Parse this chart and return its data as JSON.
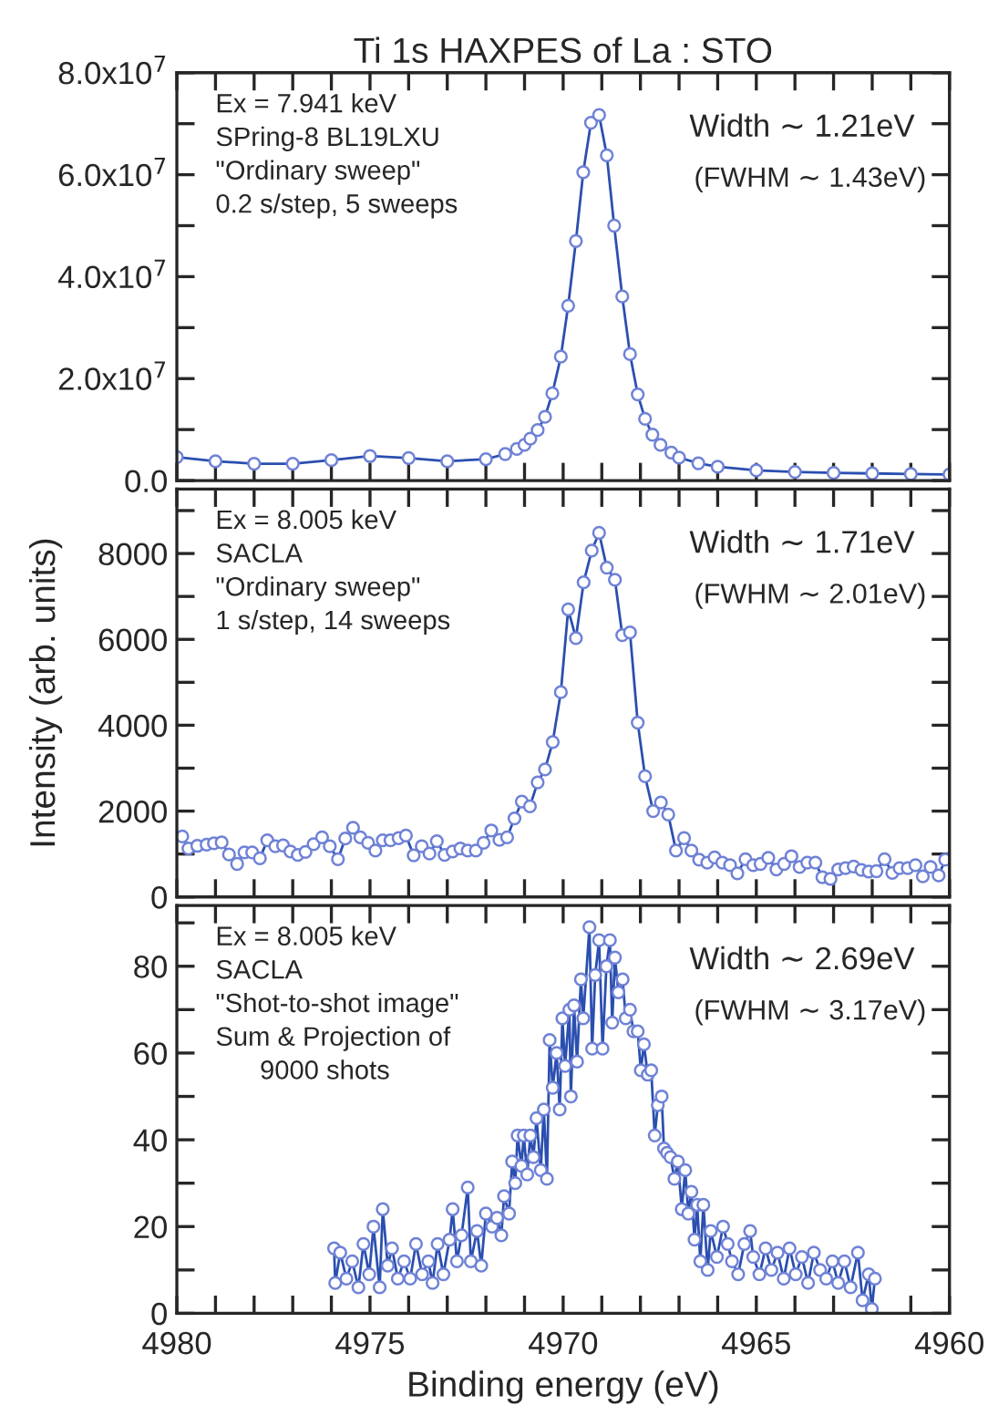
{
  "chart_data": [
    {
      "type": "line",
      "title": "Ti 1s HAXPES of La : STO",
      "marker": "circle",
      "line_style": "solid",
      "grid": false,
      "tick_labels": "y",
      "annotations": [
        "Ex = 7.941 keV\nSPring-8 BL19LXU\n\"Ordinary sweep\"\n0.2 s/step, 5 sweeps",
        "Width ∼ 1.21eV",
        "(FWHM ∼ 1.43eV)"
      ],
      "xlim": [
        4980,
        4960
      ],
      "xticks": [
        {
          "value": 4980,
          "label": null
        },
        {
          "value": 4979,
          "label": null
        },
        {
          "value": 4978,
          "label": null
        },
        {
          "value": 4977,
          "label": null
        },
        {
          "value": 4976,
          "label": null
        },
        {
          "value": 4975,
          "label": null
        },
        {
          "value": 4974,
          "label": null
        },
        {
          "value": 4973,
          "label": null
        },
        {
          "value": 4972,
          "label": null
        },
        {
          "value": 4971,
          "label": null
        },
        {
          "value": 4970,
          "label": null
        },
        {
          "value": 4969,
          "label": null
        },
        {
          "value": 4968,
          "label": null
        },
        {
          "value": 4967,
          "label": null
        },
        {
          "value": 4966,
          "label": null
        },
        {
          "value": 4965,
          "label": null
        },
        {
          "value": 4964,
          "label": null
        },
        {
          "value": 4963,
          "label": null
        },
        {
          "value": 4962,
          "label": null
        },
        {
          "value": 4961,
          "label": null
        },
        {
          "value": 4960,
          "label": null
        }
      ],
      "ylim": [
        0,
        80000000
      ],
      "yticks": [
        {
          "value": 0,
          "label": "0.0"
        },
        {
          "value": 10000000,
          "label": null
        },
        {
          "value": 20000000,
          "label": "2.0x10$^{7}$"
        },
        {
          "value": 30000000,
          "label": null
        },
        {
          "value": 40000000,
          "label": "4.0x10$^{7}$"
        },
        {
          "value": 50000000,
          "label": null
        },
        {
          "value": 60000000,
          "label": "6.0x10$^{7}$"
        },
        {
          "value": 70000000,
          "label": null
        },
        {
          "value": 80000000,
          "label": "8.0x10$^{7}$"
        }
      ],
      "series": [
        {
          "color": "#2b4fb0",
          "x": [
            4980,
            4979,
            4978,
            4977,
            4976,
            4975,
            4974,
            4973,
            4972,
            4971.5,
            4971.2,
            4971.0,
            4970.85,
            4970.66,
            4970.47,
            4970.28,
            4970.06,
            4969.87,
            4969.67,
            4969.48,
            4969.28,
            4969.07,
            4968.87,
            4968.68,
            4968.47,
            4968.27,
            4968.07,
            4967.88,
            4967.69,
            4967.48,
            4967.2,
            4967,
            4966.5,
            4966,
            4965,
            4964,
            4963,
            4962,
            4961,
            4960
          ],
          "values": [
            4600000,
            3800000,
            3300000,
            3300000,
            4000000,
            4800000,
            4400000,
            3800000,
            4200000,
            5200000,
            6200000,
            7000000,
            8200000,
            9900000,
            12500000,
            17100000,
            24300000,
            34300000,
            47000000,
            60500000,
            70200000,
            71700000,
            63800000,
            50000000,
            36100000,
            24800000,
            16900000,
            12100000,
            9000000,
            7000000,
            5500000,
            4500000,
            3400000,
            2700000,
            2000000,
            1700000,
            1500000,
            1400000,
            1300000,
            1200000
          ]
        }
      ]
    },
    {
      "type": "line",
      "ylabel": "Intensity (arb. units)",
      "marker": "circle",
      "line_style": "solid",
      "grid": false,
      "tick_labels": "y",
      "annotations": [
        "Ex = 8.005 keV\nSACLA\n\"Ordinary sweep\"\n1 s/step, 14 sweeps",
        "Width ∼ 1.71eV",
        "(FWHM ∼ 2.01eV)"
      ],
      "xlim": [
        4980,
        4960
      ],
      "xticks": [
        {
          "value": 4980,
          "label": null
        },
        {
          "value": 4979,
          "label": null
        },
        {
          "value": 4978,
          "label": null
        },
        {
          "value": 4977,
          "label": null
        },
        {
          "value": 4976,
          "label": null
        },
        {
          "value": 4975,
          "label": null
        },
        {
          "value": 4974,
          "label": null
        },
        {
          "value": 4973,
          "label": null
        },
        {
          "value": 4972,
          "label": null
        },
        {
          "value": 4971,
          "label": null
        },
        {
          "value": 4970,
          "label": null
        },
        {
          "value": 4969,
          "label": null
        },
        {
          "value": 4968,
          "label": null
        },
        {
          "value": 4967,
          "label": null
        },
        {
          "value": 4966,
          "label": null
        },
        {
          "value": 4965,
          "label": null
        },
        {
          "value": 4964,
          "label": null
        },
        {
          "value": 4963,
          "label": null
        },
        {
          "value": 4962,
          "label": null
        },
        {
          "value": 4961,
          "label": null
        },
        {
          "value": 4960,
          "label": null
        }
      ],
      "ylim": [
        0,
        9500
      ],
      "yticks": [
        0,
        {
          "value": 1000,
          "label": null
        },
        2000,
        {
          "value": 3000,
          "label": null
        },
        4000,
        {
          "value": 5000,
          "label": null
        },
        6000,
        {
          "value": 7000,
          "label": null
        },
        8000,
        {
          "value": 9000,
          "label": null
        }
      ],
      "series": [
        {
          "color": "#2b4fb0",
          "x": [
            4979.86,
            4979.7,
            4979.47,
            4979.23,
            4979.04,
            4978.84,
            4978.65,
            4978.44,
            4978.25,
            4978.05,
            4977.85,
            4977.66,
            4977.45,
            4977.25,
            4977.06,
            4976.87,
            4976.67,
            4976.46,
            4976.24,
            4976.04,
            4975.83,
            4975.64,
            4975.44,
            4975.25,
            4975.05,
            4974.86,
            4974.67,
            4974.47,
            4974.26,
            4974.07,
            4973.87,
            4973.66,
            4973.46,
            4973.27,
            4973.07,
            4972.86,
            4972.66,
            4972.47,
            4972.26,
            4972.06,
            4971.86,
            4971.65,
            4971.45,
            4971.26,
            4971.07,
            4970.86,
            4970.66,
            4970.47,
            4970.27,
            4970.06,
            4969.87,
            4969.67,
            4969.47,
            4969.26,
            4969.07,
            4968.87,
            4968.66,
            4968.47,
            4968.27,
            4968.07,
            4967.88,
            4967.67,
            4967.47,
            4967.28,
            4967.08,
            4966.87,
            4966.68,
            4966.48,
            4966.27,
            4966.08,
            4965.88,
            4965.68,
            4965.49,
            4965.28,
            4965.08,
            4964.89,
            4964.69,
            4964.48,
            4964.28,
            4964.09,
            4963.88,
            4963.68,
            4963.47,
            4963.29,
            4963.08,
            4962.88,
            4962.69,
            4962.48,
            4962.28,
            4962.09,
            4961.89,
            4961.68,
            4961.48,
            4961.29,
            4961.08,
            4960.88,
            4960.69,
            4960.49,
            4960.28,
            4960.11
          ],
          "values": [
            1410,
            1130,
            1190,
            1220,
            1250,
            1270,
            990,
            770,
            1040,
            1040,
            900,
            1320,
            1180,
            1200,
            1060,
            980,
            1050,
            1230,
            1390,
            1180,
            880,
            1360,
            1610,
            1390,
            1260,
            1080,
            1320,
            1320,
            1370,
            1430,
            970,
            1180,
            1010,
            1300,
            980,
            1060,
            1130,
            1080,
            1080,
            1260,
            1550,
            1330,
            1390,
            1830,
            2220,
            2110,
            2670,
            2970,
            3610,
            4770,
            6700,
            6030,
            7330,
            8070,
            8480,
            7670,
            7390,
            6100,
            6160,
            4060,
            2810,
            2000,
            2200,
            1920,
            1080,
            1370,
            1080,
            870,
            800,
            920,
            800,
            740,
            550,
            880,
            740,
            770,
            910,
            640,
            770,
            950,
            700,
            800,
            800,
            460,
            420,
            640,
            670,
            710,
            630,
            590,
            600,
            880,
            560,
            670,
            670,
            740,
            480,
            700,
            500,
            870
          ]
        }
      ]
    },
    {
      "type": "line",
      "xlabel": "Binding energy (eV)",
      "marker": "circle",
      "line_style": "solid",
      "grid": false,
      "annotations": [
        "Ex = 8.005 keV\nSACLA\n\"Shot-to-shot image\"\nSum & Projection of\n      9000 shots",
        "Width ∼ 2.69eV",
        "(FWHM ∼ 3.17eV)"
      ],
      "xlim": [
        4980,
        4960
      ],
      "xticks": [
        4980,
        {
          "value": 4979,
          "label": null
        },
        {
          "value": 4978,
          "label": null
        },
        {
          "value": 4977,
          "label": null
        },
        {
          "value": 4976,
          "label": null
        },
        4975,
        {
          "value": 4974,
          "label": null
        },
        {
          "value": 4973,
          "label": null
        },
        {
          "value": 4972,
          "label": null
        },
        {
          "value": 4971,
          "label": null
        },
        4970,
        {
          "value": 4969,
          "label": null
        },
        {
          "value": 4968,
          "label": null
        },
        {
          "value": 4967,
          "label": null
        },
        {
          "value": 4966,
          "label": null
        },
        4965,
        {
          "value": 4964,
          "label": null
        },
        {
          "value": 4963,
          "label": null
        },
        {
          "value": 4962,
          "label": null
        },
        {
          "value": 4961,
          "label": null
        },
        4960
      ],
      "ylim": [
        0,
        94
      ],
      "yticks": [
        0,
        {
          "value": 10,
          "label": null
        },
        20,
        {
          "value": 30,
          "label": null
        },
        40,
        {
          "value": 50,
          "label": null
        },
        60,
        {
          "value": 70,
          "label": null
        },
        80,
        {
          "value": 90,
          "label": null
        }
      ],
      "series": [
        {
          "color": "#2b4fb0",
          "x": [
            4975.93,
            4975.9,
            4975.77,
            4975.61,
            4975.46,
            4975.3,
            4975.17,
            4975.02,
            4974.91,
            4974.75,
            4974.67,
            4974.54,
            4974.43,
            4974.28,
            4974.12,
            4973.96,
            4973.81,
            4973.65,
            4973.49,
            4973.38,
            4973.25,
            4973.1,
            4972.94,
            4972.86,
            4972.75,
            4972.63,
            4972.47,
            4972.39,
            4972.23,
            4972.12,
            4972.0,
            4971.84,
            4971.71,
            4971.6,
            4971.53,
            4971.4,
            4971.32,
            4971.24,
            4971.18,
            4971.08,
            4971.02,
            4970.93,
            4970.85,
            4970.77,
            4970.69,
            4970.58,
            4970.5,
            4970.42,
            4970.35,
            4970.27,
            4970.17,
            4970.09,
            4970.02,
            4969.95,
            4969.84,
            4969.8,
            4969.72,
            4969.64,
            4969.54,
            4969.48,
            4969.32,
            4969.25,
            4969.17,
            4969.07,
            4968.98,
            4968.88,
            4968.79,
            4968.73,
            4968.66,
            4968.57,
            4968.46,
            4968.38,
            4968.27,
            4968.18,
            4968.07,
            4967.99,
            4967.91,
            4967.81,
            4967.72,
            4967.63,
            4967.55,
            4967.45,
            4967.39,
            4967.31,
            4967.22,
            4967.12,
            4967.03,
            4966.93,
            4966.84,
            4966.76,
            4966.68,
            4966.6,
            4966.53,
            4966.45,
            4966.37,
            4966.26,
            4966.18,
            4966.02,
            4965.86,
            4965.74,
            4965.63,
            4965.47,
            4965.31,
            4965.16,
            4965.08,
            4964.92,
            4964.76,
            4964.61,
            4964.45,
            4964.29,
            4964.14,
            4963.98,
            4963.82,
            4963.66,
            4963.51,
            4963.35,
            4963.19,
            4963.03,
            4962.88,
            4962.72,
            4962.56,
            4962.37,
            4962.25,
            4962.09,
            4962.01,
            4961.93
          ],
          "values": [
            15,
            7,
            14,
            8,
            12,
            6,
            16,
            9,
            20,
            6,
            24,
            11,
            15,
            8,
            12,
            8,
            16,
            9,
            12,
            7,
            16,
            9,
            17,
            24,
            12,
            18,
            29,
            12,
            19,
            11,
            23,
            20,
            22,
            18,
            27,
            23,
            35,
            30,
            41,
            34,
            41,
            32,
            41,
            36,
            45,
            33,
            47,
            31,
            63,
            52,
            60,
            47,
            68,
            57,
            70,
            50,
            71,
            58,
            77,
            68,
            89,
            61,
            78,
            86,
            61,
            80,
            86,
            67,
            82,
            74,
            77,
            68,
            70,
            65,
            65,
            56,
            62,
            55,
            56,
            41,
            48,
            50,
            38,
            37,
            36,
            31,
            35,
            24,
            33,
            23,
            28,
            17,
            25,
            12,
            25,
            10,
            19,
            13,
            20,
            16,
            12,
            9,
            16,
            19,
            13,
            9,
            15,
            10,
            14,
            8,
            15,
            9,
            13,
            7,
            14,
            10,
            8,
            12,
            7,
            12,
            6,
            14,
            3,
            9,
            1,
            8
          ]
        }
      ]
    }
  ]
}
